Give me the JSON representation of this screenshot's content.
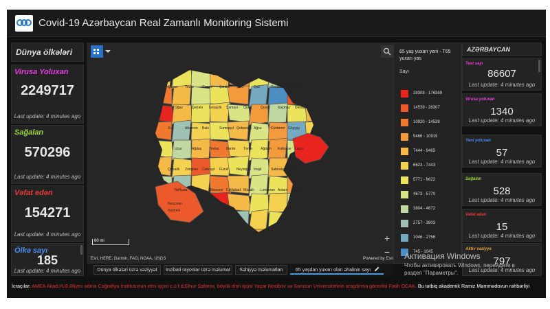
{
  "header": {
    "title": "Covid-19 Azərbaycan Real Zamanlı Monitoring Sistemi",
    "logo": "ceo-logo"
  },
  "left": {
    "title": "Dünya ölkələri",
    "stats": [
      {
        "label": "Virusa Yoluxan",
        "value": "2249717",
        "update": "Last update: 4 minutes ago",
        "color": "#e83fe0"
      },
      {
        "label": "Sağalan",
        "value": "570296",
        "update": "Last update: 4 minutes ago",
        "color": "#9cd43b"
      },
      {
        "label": "Vəfat edən",
        "value": "154271",
        "update": "Last update: 4 minutes ago",
        "color": "#e83a3a"
      },
      {
        "label": "Ölkə sayı",
        "value": "185",
        "update": "Last update: 4 minutes ago",
        "color": "#4d8ef0"
      }
    ]
  },
  "right": {
    "title": "AZƏRBAYCAN",
    "stats": [
      {
        "label": "Test sayı",
        "value": "86607",
        "update": "Last update: 4 minutes ago",
        "color": "#e83fe0"
      },
      {
        "label": "Virusa yoluxan",
        "value": "1340",
        "update": "Last update: 4 minutes ago",
        "color": "#e83fe0"
      },
      {
        "label": "Yeni yoluxan",
        "value": "57",
        "update": "Last update: 4 minutes ago",
        "color": "#4d8ef0"
      },
      {
        "label": "Sağalan",
        "value": "528",
        "update": "Last update: 4 minutes ago",
        "color": "#9cd43b"
      },
      {
        "label": "Vəfat edən",
        "value": "15",
        "update": "Last update: 4 minutes ago",
        "color": "#e83a3a"
      },
      {
        "label": "Aktiv vaziyyə",
        "value": "797",
        "update": "Last update: 4 minutes ago",
        "color": "#e8a83a"
      }
    ]
  },
  "map": {
    "attribution": "Esri, HERE, Garmin, FAO, NOAA, USGS",
    "powered": "Powered by Esri",
    "scale": "60 mi",
    "zoom_in": "+",
    "zoom_out": "−",
    "regions": [
      "Qazax",
      "Tovuz",
      "Gəncə",
      "Şəmkir",
      "Şəki",
      "Qax",
      "Zaqatala",
      "Balakən",
      "Oğuz",
      "Qəbələ",
      "İsmayıllı",
      "Şamaxı",
      "Quba",
      "Qusar",
      "Xaçmaz",
      "Dəvəçi",
      "Xızı",
      "Abşeron",
      "Bakı",
      "Sumqayıt",
      "Qobustan",
      "Ağsu",
      "Kürdəmir",
      "Göyçay",
      "Ucar",
      "Ağdaş",
      "Yevlax",
      "Bərdə",
      "Tərtər",
      "Ağdam",
      "Kəlbəcər",
      "Laçın",
      "Qubadlı",
      "Zəngilan",
      "Cəbrayıl",
      "Füzuli",
      "Beyləqan",
      "İmişli",
      "Sabirabad",
      "Salyan",
      "Neftçala",
      "Saatlı",
      "Biləsuvar",
      "Cəlilabad",
      "Masallı",
      "Lənkəran",
      "Astara",
      "Lerik",
      "Yardımlı",
      "Naxçıvan"
    ]
  },
  "legend": {
    "title": "65 yaş yuxarı yeni - T65 yuxarı yas",
    "subtitle": "Sayı",
    "items": [
      {
        "label": "28308 - 176369",
        "color": "#e8241e"
      },
      {
        "label": "14539 - 28307",
        "color": "#ec5a2c"
      },
      {
        "label": "10920 - 14538",
        "color": "#f0782f"
      },
      {
        "label": "9466 - 10919",
        "color": "#f39b3c"
      },
      {
        "label": "7444 - 9465",
        "color": "#f5b947"
      },
      {
        "label": "6623 - 7443",
        "color": "#f4d24f"
      },
      {
        "label": "5771 - 6622",
        "color": "#ece35d"
      },
      {
        "label": "4673 - 5770",
        "color": "#d8e486"
      },
      {
        "label": "3804 - 4672",
        "color": "#c0d7a2"
      },
      {
        "label": "2757 - 3803",
        "color": "#9fc2b4"
      },
      {
        "label": "1046 - 2756",
        "color": "#74a9c1"
      },
      {
        "label": "745 - 1045",
        "color": "#4a8ec2"
      }
    ]
  },
  "tabs": [
    "Dünya ölkələri üzrə vəziyyət",
    "İnzibati rayonlar üzrə məlumat",
    "Səhiyyə məlumatları",
    "65 yaşdan yuxarı olan əhalinin sayı"
  ],
  "footer": {
    "prefix": "İcraçılar:",
    "red": "AMEA Akad.H.Ə.Əliyev adına Coğrafiya İnstitutunun elmi işçisi c.ü.f.d.Elnur Safarov, böyük elmi işçisi Yaşar Nosibov və Samsun Universitetinin araşdırma görevlisi Fatih OCAK.",
    "suffix": "Bu tətbiq akademik Ramiz Məmmədovun rəhbərliyi"
  },
  "watermark": {
    "title": "Активация Windows",
    "line1": "Чтобы активировать Windows, перейдите в",
    "line2": "раздел \"Параметры\"."
  }
}
